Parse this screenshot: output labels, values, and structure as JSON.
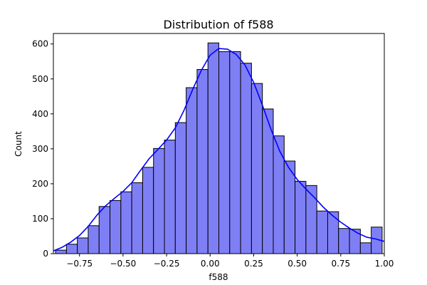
{
  "chart_data": {
    "type": "bar",
    "title": "Distribution of f588",
    "xlabel": "f588",
    "ylabel": "Count",
    "xlim": [
      -0.9,
      1.0
    ],
    "ylim": [
      0,
      630
    ],
    "x_ticks": [
      -0.75,
      -0.5,
      -0.25,
      0.0,
      0.25,
      0.5,
      0.75,
      1.0
    ],
    "x_tick_labels": [
      "−0.75",
      "−0.50",
      "−0.25",
      "0.00",
      "0.25",
      "0.50",
      "0.75",
      "1.00"
    ],
    "y_ticks": [
      0,
      100,
      200,
      300,
      400,
      500,
      600
    ],
    "y_tick_labels": [
      "0",
      "100",
      "200",
      "300",
      "400",
      "500",
      "600"
    ],
    "bin_edges": [
      -0.8875,
      -0.825,
      -0.7625,
      -0.7,
      -0.6375,
      -0.575,
      -0.5125,
      -0.45,
      -0.3875,
      -0.325,
      -0.2625,
      -0.2,
      -0.1375,
      -0.075,
      -0.0125,
      0.05,
      0.1125,
      0.175,
      0.2375,
      0.3,
      0.3625,
      0.425,
      0.4875,
      0.55,
      0.6125,
      0.675,
      0.7375,
      0.8,
      0.8625,
      0.925,
      0.9875
    ],
    "values": [
      10,
      27,
      45,
      80,
      135,
      152,
      177,
      203,
      247,
      301,
      325,
      375,
      475,
      527,
      603,
      578,
      578,
      545,
      487,
      414,
      337,
      265,
      207,
      195,
      122,
      120,
      72,
      70,
      31,
      76
    ],
    "kde": {
      "x": [
        -0.9,
        -0.85,
        -0.8,
        -0.75,
        -0.7,
        -0.65,
        -0.6,
        -0.55,
        -0.5,
        -0.45,
        -0.4,
        -0.35,
        -0.3,
        -0.25,
        -0.2,
        -0.15,
        -0.1,
        -0.05,
        0.0,
        0.05,
        0.1,
        0.15,
        0.2,
        0.25,
        0.3,
        0.35,
        0.4,
        0.45,
        0.5,
        0.55,
        0.6,
        0.65,
        0.7,
        0.75,
        0.8,
        0.85,
        0.9,
        0.95,
        1.0
      ],
      "y": [
        8,
        18,
        33,
        52,
        78,
        110,
        137,
        158,
        178,
        203,
        238,
        272,
        298,
        325,
        360,
        410,
        470,
        525,
        568,
        587,
        585,
        570,
        540,
        490,
        425,
        355,
        293,
        247,
        212,
        185,
        160,
        133,
        110,
        90,
        73,
        58,
        47,
        42,
        35
      ]
    },
    "colors": {
      "bar_fill": "#7f7ff5",
      "bar_edge": "#000000",
      "kde_line": "#0000ff",
      "axis": "#000000"
    },
    "grid": false,
    "legend": "none"
  }
}
